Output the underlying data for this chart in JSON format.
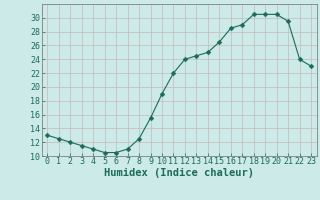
{
  "x": [
    0,
    1,
    2,
    3,
    4,
    5,
    6,
    7,
    8,
    9,
    10,
    11,
    12,
    13,
    14,
    15,
    16,
    17,
    18,
    19,
    20,
    21,
    22,
    23
  ],
  "y": [
    13,
    12.5,
    12,
    11.5,
    11,
    10.5,
    10.5,
    11,
    12.5,
    15.5,
    19,
    22,
    24,
    24.5,
    25,
    26.5,
    28.5,
    29,
    30.5,
    30.5,
    30.5,
    29.5,
    24,
    23
  ],
  "line_color": "#1a6b5a",
  "marker": "D",
  "marker_size": 2.5,
  "bg_color": "#cceae7",
  "grid_color": "#c8b8b8",
  "xlabel": "Humidex (Indice chaleur)",
  "ylabel": "",
  "xlim": [
    -0.5,
    23.5
  ],
  "ylim": [
    10,
    32
  ],
  "yticks": [
    10,
    12,
    14,
    16,
    18,
    20,
    22,
    24,
    26,
    28,
    30
  ],
  "xticks": [
    0,
    1,
    2,
    3,
    4,
    5,
    6,
    7,
    8,
    9,
    10,
    11,
    12,
    13,
    14,
    15,
    16,
    17,
    18,
    19,
    20,
    21,
    22,
    23
  ],
  "tick_color": "#1a6b5a",
  "axis_color": "#1a6b5a",
  "xlabel_fontsize": 7.5,
  "tick_fontsize": 6.0,
  "spine_color": "#808080"
}
